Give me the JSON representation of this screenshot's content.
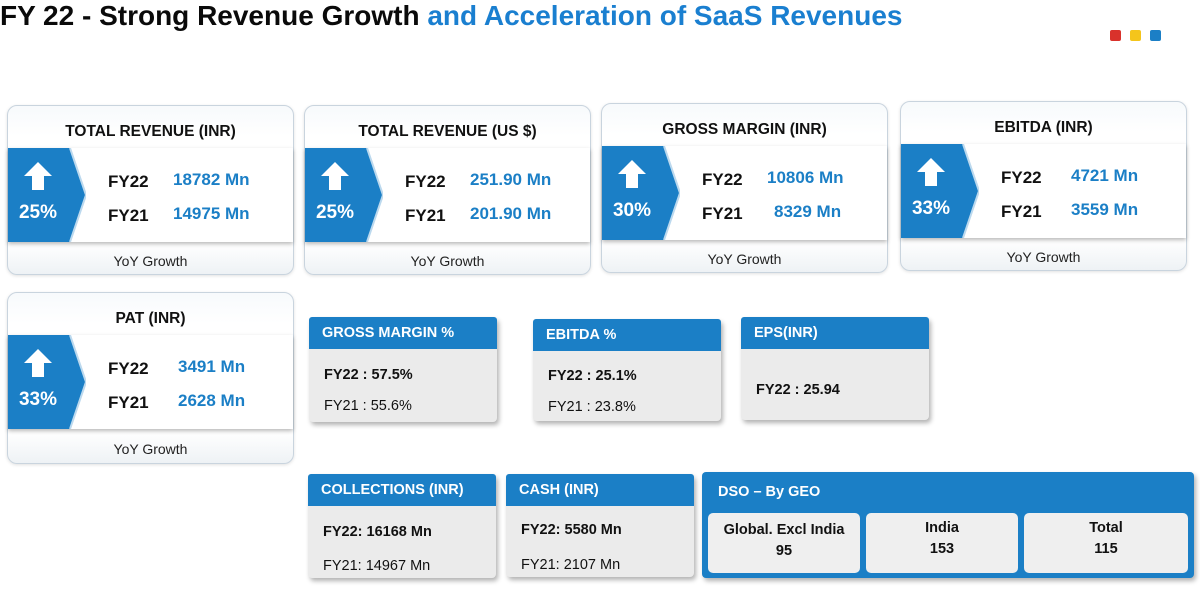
{
  "title": {
    "part1": "FY 22 - Strong Revenue Growth",
    "part2": "and Acceleration of SaaS Revenues"
  },
  "brand_dots": [
    "#d9322b",
    "#f4c51b",
    "#1b7fc6"
  ],
  "metric_cards": [
    {
      "title": "TOTAL REVENUE (INR)",
      "growth": "25%",
      "fy22_label": "FY22",
      "fy22_value": "18782 Mn",
      "fy21_label": "FY21",
      "fy21_value": "14975 Mn",
      "footer": "YoY Growth"
    },
    {
      "title": "TOTAL REVENUE (US $)",
      "growth": "25%",
      "fy22_label": "FY22",
      "fy22_value": "251.90 Mn",
      "fy21_label": "FY21",
      "fy21_value": "201.90 Mn",
      "footer": "YoY Growth"
    },
    {
      "title": "GROSS MARGIN (INR)",
      "growth": "30%",
      "fy22_label": "FY22",
      "fy22_value": "10806 Mn",
      "fy21_label": "FY21",
      "fy21_value": "8329 Mn",
      "footer": "YoY Growth"
    },
    {
      "title": "EBITDA (INR)",
      "growth": "33%",
      "fy22_label": "FY22",
      "fy22_value": "4721 Mn",
      "fy21_label": "FY21",
      "fy21_value": "3559 Mn",
      "footer": "YoY Growth"
    },
    {
      "title": "PAT (INR)",
      "growth": "33%",
      "fy22_label": "FY22",
      "fy22_value": "3491 Mn",
      "fy21_label": "FY21",
      "fy21_value": "2628 Mn",
      "footer": "YoY Growth"
    }
  ],
  "small_cards": [
    {
      "title": "GROSS MARGIN %",
      "line1": "FY22 : 57.5%",
      "line2": "FY21 : 55.6%"
    },
    {
      "title": "EBITDA %",
      "line1": "FY22 : 25.1%",
      "line2": "FY21 : 23.8%"
    },
    {
      "title": "EPS(INR)",
      "line1": "FY22 : 25.94",
      "line2": ""
    },
    {
      "title": "COLLECTIONS (INR)",
      "line1": "FY22: 16168  Mn",
      "line2": "FY21: 14967 Mn"
    },
    {
      "title": "CASH (INR)",
      "line1": "FY22: 5580  Mn",
      "line2": "FY21: 2107 Mn"
    }
  ],
  "dso": {
    "title": "DSO – By GEO",
    "geos": [
      {
        "label": "Global. Excl India",
        "value": "95"
      },
      {
        "label": "India",
        "value": "153"
      },
      {
        "label": "Total",
        "value": "115"
      }
    ]
  },
  "colors": {
    "accent": "#1b7fc6",
    "title_blue": "#1a7fd0",
    "chevron": "#1b7fc6"
  }
}
